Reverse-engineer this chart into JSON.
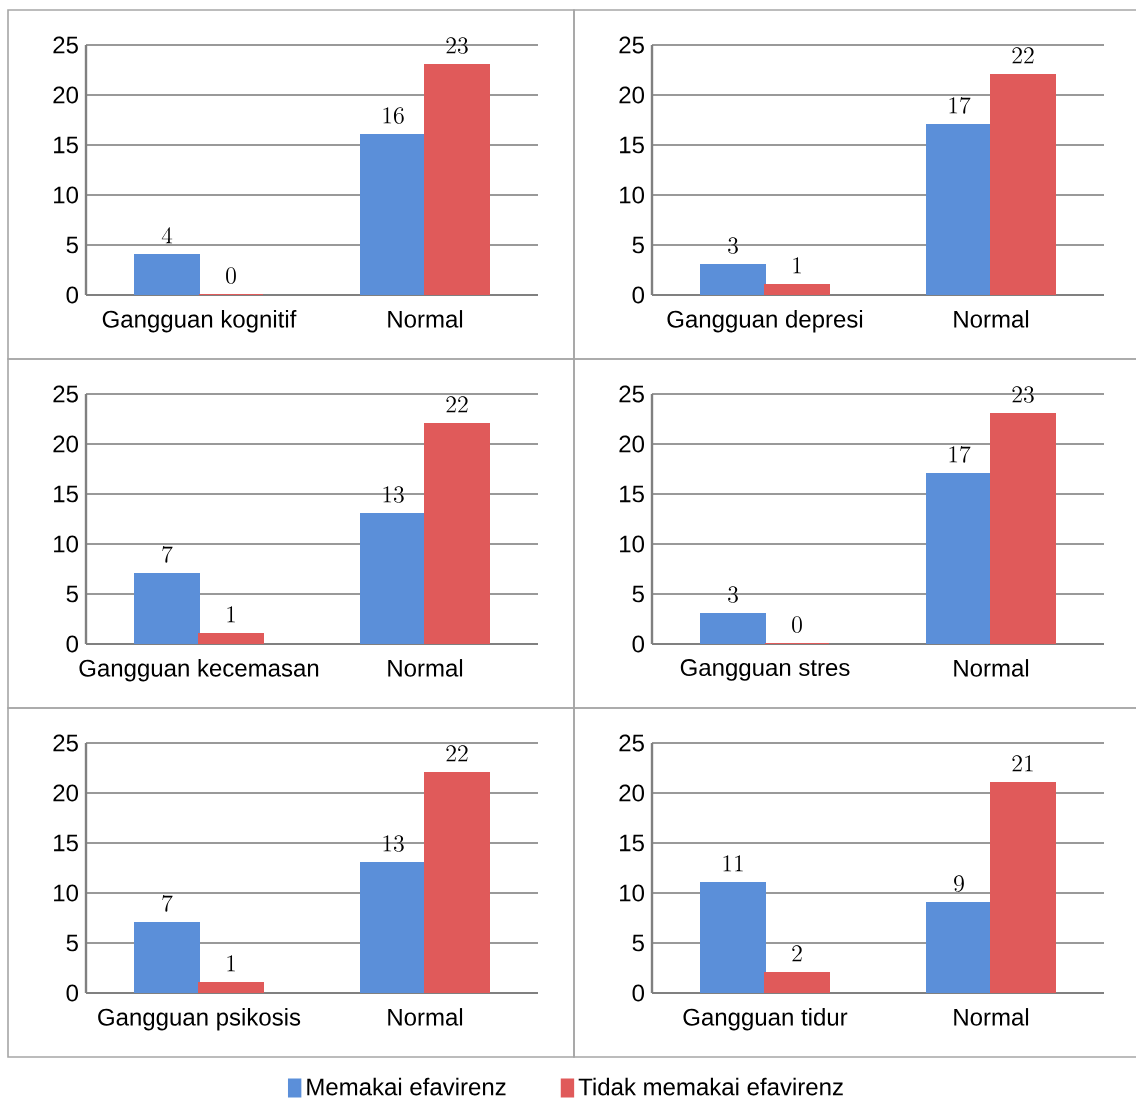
{
  "chart_data": [
    {
      "type": "bar",
      "categories": [
        "Gangguan kognitif",
        "Normal"
      ],
      "series": [
        {
          "color": "#5b8fd9",
          "values": [
            4,
            16
          ]
        },
        {
          "color": "#e05a5a",
          "values": [
            0,
            23
          ]
        }
      ],
      "ylim": [
        0,
        25
      ],
      "yticks": [
        0,
        5,
        10,
        15,
        20,
        25
      ],
      "grid": "y",
      "data_labels": true
    },
    {
      "type": "bar",
      "categories": [
        "Gangguan depresi",
        "Normal"
      ],
      "series": [
        {
          "color": "#5b8fd9",
          "values": [
            3,
            17
          ]
        },
        {
          "color": "#e05a5a",
          "values": [
            1,
            22
          ]
        }
      ],
      "ylim": [
        0,
        25
      ],
      "yticks": [
        0,
        5,
        10,
        15,
        20,
        25
      ],
      "grid": "y",
      "data_labels": true
    },
    {
      "type": "bar",
      "categories": [
        "Gangguan kecemasan",
        "Normal"
      ],
      "series": [
        {
          "color": "#5b8fd9",
          "values": [
            7,
            13
          ]
        },
        {
          "color": "#e05a5a",
          "values": [
            1,
            22
          ]
        }
      ],
      "ylim": [
        0,
        25
      ],
      "yticks": [
        0,
        5,
        10,
        15,
        20,
        25
      ],
      "grid": "y",
      "data_labels": true
    },
    {
      "type": "bar",
      "categories": [
        "Gangguan stres",
        "Normal"
      ],
      "series": [
        {
          "color": "#5b8fd9",
          "values": [
            3,
            17
          ]
        },
        {
          "color": "#e05a5a",
          "values": [
            0,
            23
          ]
        }
      ],
      "ylim": [
        0,
        25
      ],
      "yticks": [
        0,
        5,
        10,
        15,
        20,
        25
      ],
      "grid": "y",
      "data_labels": true
    },
    {
      "type": "bar",
      "categories": [
        "Gangguan psikosis",
        "Normal"
      ],
      "series": [
        {
          "color": "#5b8fd9",
          "values": [
            7,
            13
          ]
        },
        {
          "color": "#e05a5a",
          "values": [
            1,
            22
          ]
        }
      ],
      "ylim": [
        0,
        25
      ],
      "yticks": [
        0,
        5,
        10,
        15,
        20,
        25
      ],
      "grid": "y",
      "data_labels": true
    },
    {
      "type": "bar",
      "categories": [
        "Gangguan tidur",
        "Normal"
      ],
      "series": [
        {
          "name": "Memakai efavirenz",
          "color": "#5b8fd9",
          "values": [
            11,
            9
          ]
        },
        {
          "name": "Tidak memakai efavirenz",
          "color": "#e05a5a",
          "values": [
            2,
            21
          ]
        }
      ],
      "ylim": [
        0,
        25
      ],
      "yticks": [
        0,
        5,
        10,
        15,
        20,
        25
      ],
      "grid": "y",
      "data_labels": true,
      "legend": "bottom"
    }
  ]
}
